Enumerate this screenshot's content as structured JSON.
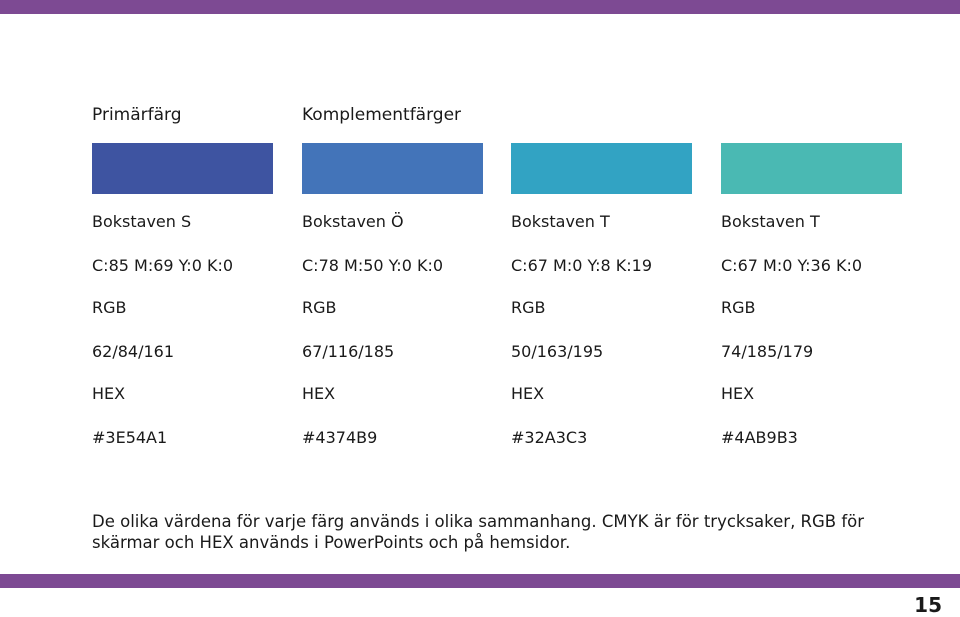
{
  "headings": {
    "primary": "Primärfärg",
    "complement": "Komplementfärger"
  },
  "colors": [
    {
      "name": "Bokstaven S",
      "cmyk": "C:85 M:69 Y:0 K:0",
      "rgb_label": "RGB",
      "rgb": "62/84/161",
      "hex_label": "HEX",
      "hex_text": "#3E54A1",
      "swatch": "#3E54A1"
    },
    {
      "name": "Bokstaven Ö",
      "cmyk": "C:78 M:50 Y:0 K:0",
      "rgb_label": "RGB",
      "rgb": "67/116/185",
      "hex_label": "HEX",
      "hex_text": "#4374B9",
      "swatch": "#4374B9"
    },
    {
      "name": "Bokstaven T",
      "cmyk": "C:67 M:0 Y:8 K:19",
      "rgb_label": "RGB",
      "rgb": "50/163/195",
      "hex_label": "HEX",
      "hex_text": "#32A3C3",
      "swatch": "#32A3C3"
    },
    {
      "name": "Bokstaven T",
      "cmyk": "C:67 M:0 Y:36 K:0",
      "rgb_label": "RGB",
      "rgb": "74/185/179",
      "hex_label": "HEX",
      "hex_text": "#4AB9B3",
      "swatch": "#4AB9B3"
    }
  ],
  "footnote": "De olika värdena för varje färg används i olika sammanhang. CMYK är för trycksaker, RGB för skärmar och HEX används i PowerPoints och på hemsidor.",
  "page_number": "15",
  "theme": {
    "accent_bar": "#7D4A93"
  }
}
